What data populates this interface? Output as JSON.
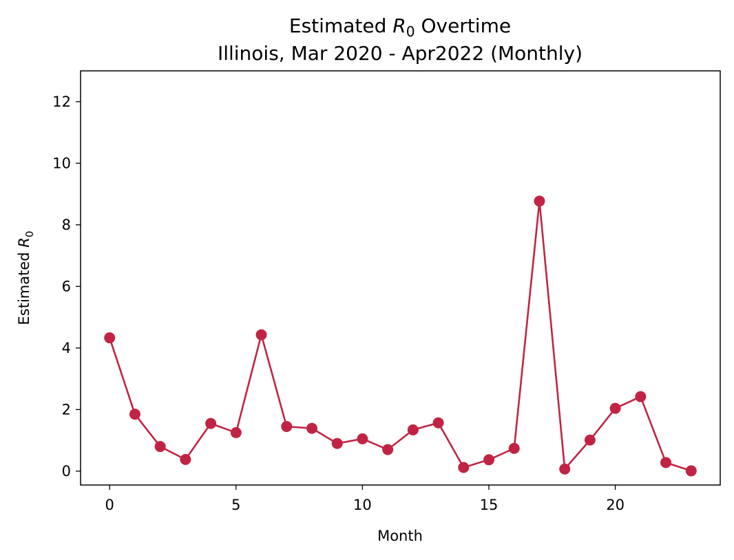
{
  "chart_data": {
    "type": "line",
    "title": {
      "line1_prefix": "Estimated ",
      "line1_symbol": "R",
      "line1_subscript": "0",
      "line1_suffix": " Overtime",
      "line2": "Illinois, Mar 2020 - Apr2022 (Monthly)"
    },
    "xlabel": "Month",
    "ylabel": {
      "prefix": "Estimated ",
      "symbol": "R",
      "subscript": "0"
    },
    "xlim": [
      -1.15,
      24.15
    ],
    "ylim": [
      -0.45,
      13.0
    ],
    "xticks": [
      0,
      5,
      10,
      15,
      20
    ],
    "yticks": [
      0,
      2,
      4,
      6,
      8,
      10,
      12
    ],
    "grid": false,
    "series": [
      {
        "color": "#c12443",
        "marker": "circle",
        "x": [
          0,
          1,
          2,
          3,
          4,
          5,
          6,
          7,
          8,
          9,
          10,
          11,
          12,
          13,
          14,
          15,
          16,
          17,
          18,
          19,
          20,
          21,
          22,
          23
        ],
        "y": [
          4.33,
          1.85,
          0.8,
          0.38,
          1.55,
          1.25,
          4.43,
          1.45,
          1.39,
          0.9,
          1.05,
          0.7,
          1.34,
          1.57,
          0.12,
          0.37,
          0.74,
          8.77,
          0.07,
          1.01,
          2.04,
          2.42,
          0.28,
          0.01
        ]
      }
    ]
  }
}
